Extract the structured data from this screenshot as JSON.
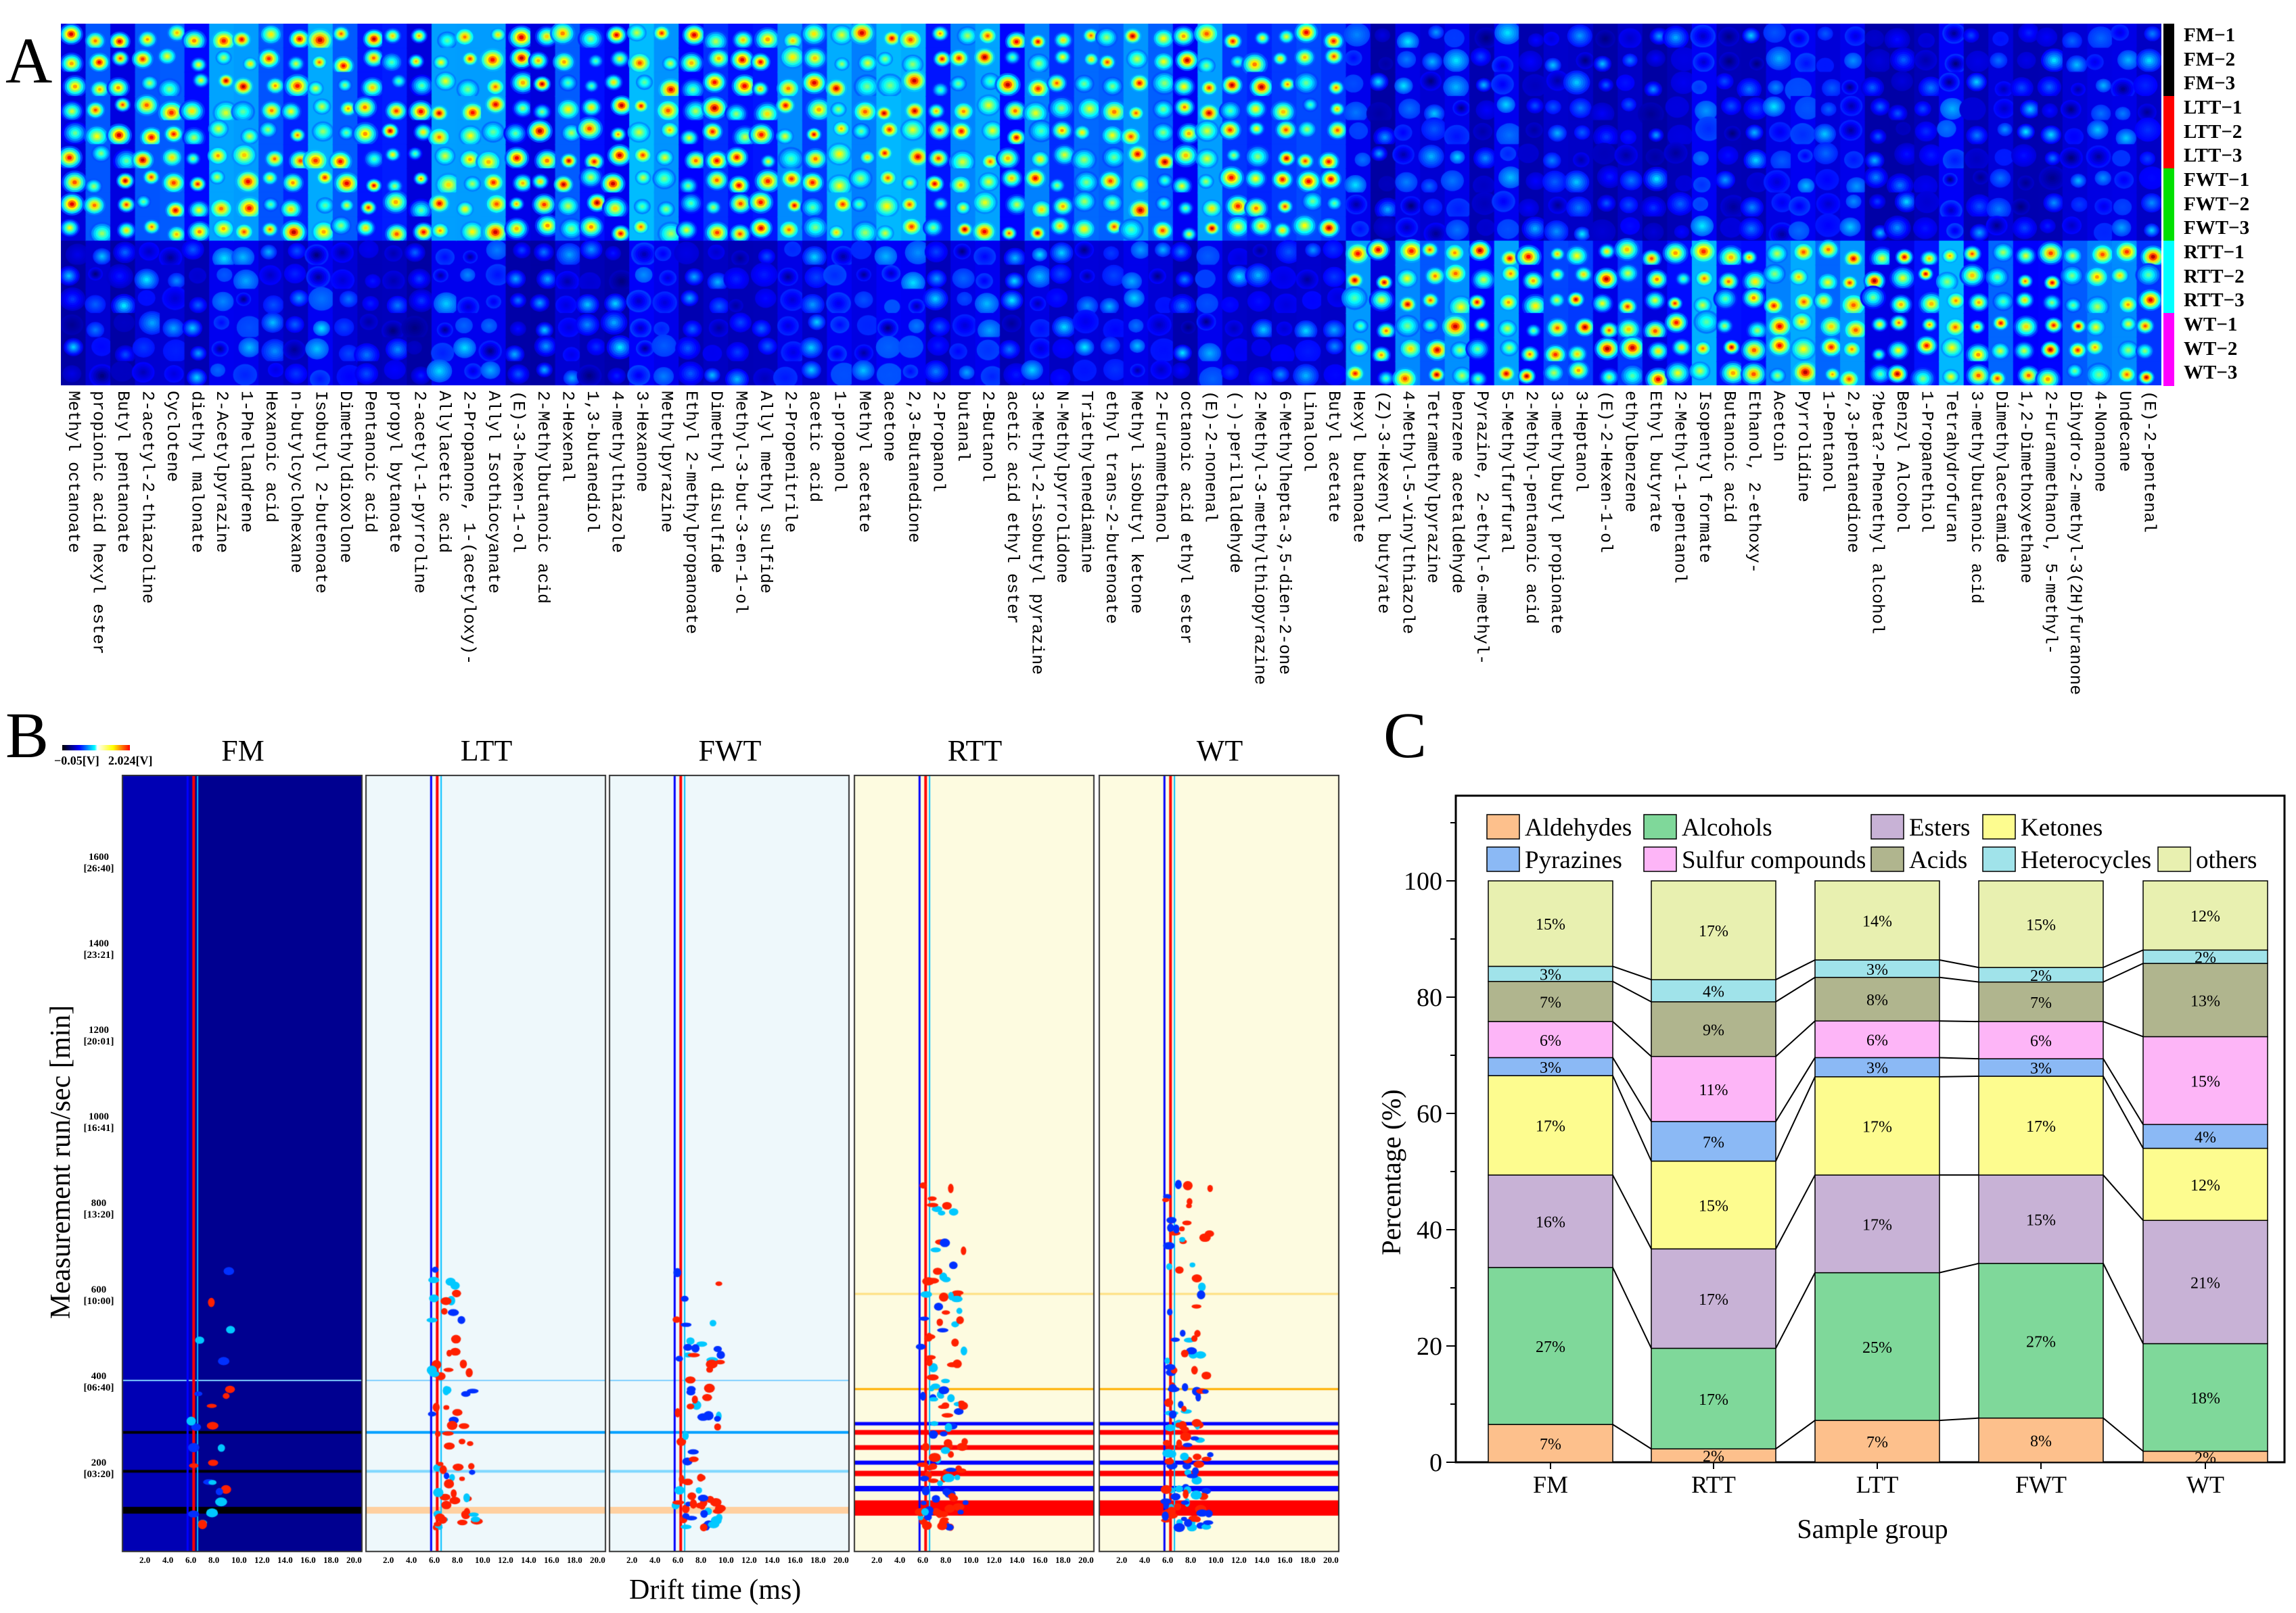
{
  "panel_letters": {
    "a": "A",
    "b": "B",
    "c": "C"
  },
  "panel_a": {
    "samples": [
      {
        "label": "FM−1",
        "group_color": "#000000"
      },
      {
        "label": "FM−2",
        "group_color": "#000000"
      },
      {
        "label": "FM−3",
        "group_color": "#000000"
      },
      {
        "label": "LTT−1",
        "group_color": "#ff0000"
      },
      {
        "label": "LTT−2",
        "group_color": "#ff0000"
      },
      {
        "label": "LTT−3",
        "group_color": "#ff0000"
      },
      {
        "label": "FWT−1",
        "group_color": "#00e000"
      },
      {
        "label": "FWT−2",
        "group_color": "#00e000"
      },
      {
        "label": "FWT−3",
        "group_color": "#00e000"
      },
      {
        "label": "RTT−1",
        "group_color": "#00ffff"
      },
      {
        "label": "RTT−2",
        "group_color": "#00ffff"
      },
      {
        "label": "RTT−3",
        "group_color": "#00ffff"
      },
      {
        "label": "WT−1",
        "group_color": "#ff00ff"
      },
      {
        "label": "WT−2",
        "group_color": "#ff00ff"
      },
      {
        "label": "WT−3",
        "group_color": "#ff00ff"
      }
    ],
    "compounds": [
      "Methyl octanoate",
      "propionic acid hexyl ester",
      "Butyl pentanoate",
      "2-acetyl-2-thiazoline",
      "Cyclotene",
      "diethyl malonate",
      "2-Acetylpyrazine",
      "1-Phellandrene",
      "Hexanoic acid",
      "n-butylcyclohexane",
      "Isobutyl 2-butenoate",
      "Dimethyldioxolone",
      "Pentanoic acid",
      "propyl bytanoate",
      "2-acetyl-1-pyrroline",
      "Allylacetic acid",
      "2-Propanone, 1-(acetyloxy)-",
      "Allyl Isothiocyanate",
      "(E)-3-hexen-1-ol",
      "2-Methylbutanoic acid",
      "2-Hexenal",
      "1,3-butanediol",
      "4-methylthiazole",
      "3-Hexanone",
      "Methylpyrazine",
      "Ethyl 2-methylpropanoate",
      "Dimethyl disulfide",
      "Methyl-3-but-3-en-1-ol",
      "Allyl methyl sulfide",
      "2-Propenitrile",
      "acetic acid",
      "1-propanol",
      "Methyl acetate",
      "acetone",
      "2,3-Butanedione",
      "2-Propanol",
      "butanal",
      "2-Butanol",
      "acetic acid ethyl ester",
      "3-Methyl-2-isobutyl pyrazine",
      "N-Methylpyrrolidone",
      "Triethylenediamine",
      "ethyl trans-2-butenoate",
      "Methyl isobutyl ketone",
      "2-Furanmethanol",
      "octanoic acid ethyl ester",
      "(E)-2-nonenal",
      "(-)-perillaldehyde",
      "2-Methyl-3-methylthiopyrazine",
      "6-Methylhepta-3,5-dien-2-one",
      "Linalool",
      "Butyl acetate",
      "Hexyl butanoate",
      "(Z)-3-Hexenyl butyrate",
      "4-Methyl-5-vinylthiazole",
      "Tetramethylpyrazine",
      "benzene acetaldehyde",
      "Pyrazine, 2-ethyl-6-methyl-",
      "5-Methylfurfural",
      "2-Methyl-pentanoic acid",
      "3-methylbutyl propionate",
      "3-Heptanol",
      "(E)-2-Hexen-1-ol",
      "ethylbenzene",
      "Ethyl butyrate",
      "2-Methyl-1-pentanol",
      "Isopentyl formate",
      "Butanoic acid",
      "Ethanol, 2-ethoxy-",
      "Acetoin",
      "Pyrrolidine",
      "1-Pentanol",
      "2,3-pentanedione",
      "?beta?-Phenethyl alcohol",
      "Benzyl Alcohol",
      "1-Propanethiol",
      "Tetrahydrofuran",
      "3-methylbutanoic acid",
      "Dimethylacetamide",
      "1,2-Dimethoxyethane",
      "2-Furanmethanol, 5-methyl-",
      "Dihydro-2-methyl-3(2H)furanone",
      "4-Nonanone",
      "Undecane",
      "(E)-2-pentenal"
    ]
  },
  "panel_b": {
    "colorbar": {
      "min_label": "−0.05[V]",
      "max_label": "2.024[V]"
    },
    "panels": [
      "FM",
      "LTT",
      "FWT",
      "RTT",
      "WT"
    ],
    "y_ticks": [
      {
        "value": 200,
        "label": "200",
        "time": "[03:20]"
      },
      {
        "value": 400,
        "label": "400",
        "time": "[06:40]"
      },
      {
        "value": 600,
        "label": "600",
        "time": "[10:00]"
      },
      {
        "value": 800,
        "label": "800",
        "time": "[13:20]"
      },
      {
        "value": 1000,
        "label": "1000",
        "time": "[16:41]"
      },
      {
        "value": 1200,
        "label": "1200",
        "time": "[20:01]"
      },
      {
        "value": 1400,
        "label": "1400",
        "time": "[23:21]"
      },
      {
        "value": 1600,
        "label": "1600",
        "time": "[26:40]"
      }
    ],
    "x_ticks": [
      "2.0",
      "4.0",
      "6.0",
      "8.0",
      "10.0",
      "12.0",
      "14.0",
      "16.0",
      "18.0",
      "20.0"
    ],
    "xlabel": "Drift time (ms)",
    "ylabel": "Measurement run/sec [min]"
  },
  "chart_data": {
    "type": "bar",
    "stacked": true,
    "title": "",
    "xlabel": "Sample group",
    "ylabel": "Percentage (%)",
    "ylim": [
      0,
      115
    ],
    "y_ticks": [
      0,
      20,
      40,
      60,
      80,
      100
    ],
    "legend_position": "top",
    "categories": [
      "FM",
      "RTT",
      "LTT",
      "FWT",
      "WT"
    ],
    "series": [
      {
        "name": "Aldehydes",
        "color": "#fdc08c",
        "values": [
          6.5,
          2.3,
          7.2,
          7.6,
          1.9
        ],
        "labels": [
          "7%",
          "2%",
          "7%",
          "8%",
          "2%"
        ]
      },
      {
        "name": "Alcohols",
        "color": "#7fd89a",
        "values": [
          27.0,
          17.3,
          25.4,
          26.6,
          18.5
        ],
        "labels": [
          "27%",
          "17%",
          "25%",
          "27%",
          "18%"
        ]
      },
      {
        "name": "Esters",
        "color": "#c8b2d6",
        "values": [
          15.9,
          17.1,
          16.8,
          15.2,
          21.2
        ],
        "labels": [
          "16%",
          "17%",
          "17%",
          "15%",
          "21%"
        ]
      },
      {
        "name": "Ketones",
        "color": "#fdfc8f",
        "values": [
          17.1,
          15.1,
          16.9,
          17.0,
          12.4
        ],
        "labels": [
          "17%",
          "15%",
          "17%",
          "17%",
          "12%"
        ]
      },
      {
        "name": "Pyrazines",
        "color": "#8bb9f5",
        "values": [
          3.1,
          6.8,
          3.3,
          3.0,
          4.1
        ],
        "labels": [
          "3%",
          "7%",
          "3%",
          "3%",
          "4%"
        ]
      },
      {
        "name": "Sulfur compounds",
        "color": "#fdb5f7",
        "values": [
          6.2,
          11.2,
          6.3,
          6.4,
          15.1
        ],
        "labels": [
          "6%",
          "11%",
          "6%",
          "6%",
          "15%"
        ]
      },
      {
        "name": "Acids",
        "color": "#b0b58e",
        "values": [
          6.9,
          9.4,
          7.5,
          6.8,
          12.6
        ],
        "labels": [
          "7%",
          "9%",
          "8%",
          "7%",
          "13%"
        ]
      },
      {
        "name": "Heterocycles",
        "color": "#a0e3ea",
        "values": [
          2.6,
          3.8,
          3.0,
          2.5,
          2.3
        ],
        "labels": [
          "3%",
          "4%",
          "3%",
          "2%",
          "2%"
        ]
      },
      {
        "name": "others",
        "color": "#e8f0b0",
        "values": [
          14.7,
          17.0,
          13.6,
          14.9,
          11.9
        ],
        "labels": [
          "15%",
          "17%",
          "14%",
          "15%",
          "12%"
        ]
      }
    ]
  }
}
